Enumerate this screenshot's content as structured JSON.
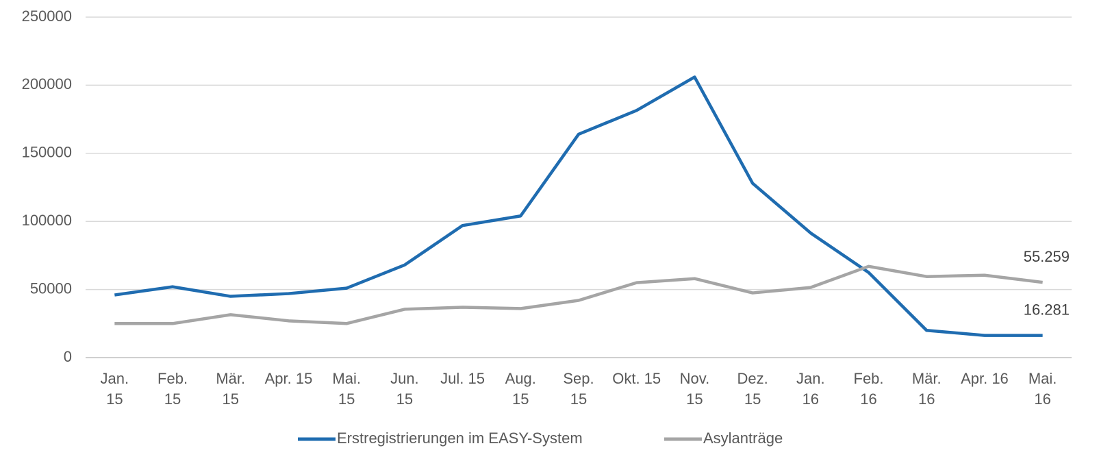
{
  "chart_data": {
    "type": "line",
    "categories": [
      "Jan. 15",
      "Feb. 15",
      "Mär. 15",
      "Apr. 15",
      "Mai. 15",
      "Jun. 15",
      "Jul. 15",
      "Aug. 15",
      "Sep. 15",
      "Okt. 15",
      "Nov. 15",
      "Dez. 15",
      "Jan. 16",
      "Feb. 16",
      "Mär. 16",
      "Apr. 16",
      "Mai. 16"
    ],
    "series": [
      {
        "name": "Erstregistrierungen im EASY-System",
        "color": "#1f6cb0",
        "values": [
          46000,
          52000,
          45000,
          47000,
          51000,
          68000,
          97000,
          104000,
          164000,
          181500,
          206000,
          128000,
          91500,
          62500,
          20000,
          16300,
          16281
        ],
        "value_labels": [
          null,
          null,
          null,
          null,
          null,
          null,
          null,
          null,
          null,
          null,
          null,
          null,
          null,
          null,
          null,
          null,
          "16.281"
        ]
      },
      {
        "name": "Asylanträge",
        "color": "#a5a5a5",
        "values": [
          25000,
          25000,
          31500,
          27000,
          25000,
          35500,
          37000,
          36000,
          42000,
          55000,
          58000,
          47500,
          51500,
          67000,
          59500,
          60500,
          55259
        ],
        "value_labels": [
          null,
          null,
          null,
          null,
          null,
          null,
          null,
          null,
          null,
          null,
          null,
          null,
          null,
          null,
          null,
          null,
          "55.259"
        ]
      }
    ],
    "ylim": [
      0,
      250000
    ],
    "yticks": [
      0,
      50000,
      100000,
      150000,
      200000,
      250000
    ],
    "grid": true,
    "legend": "bottom"
  }
}
